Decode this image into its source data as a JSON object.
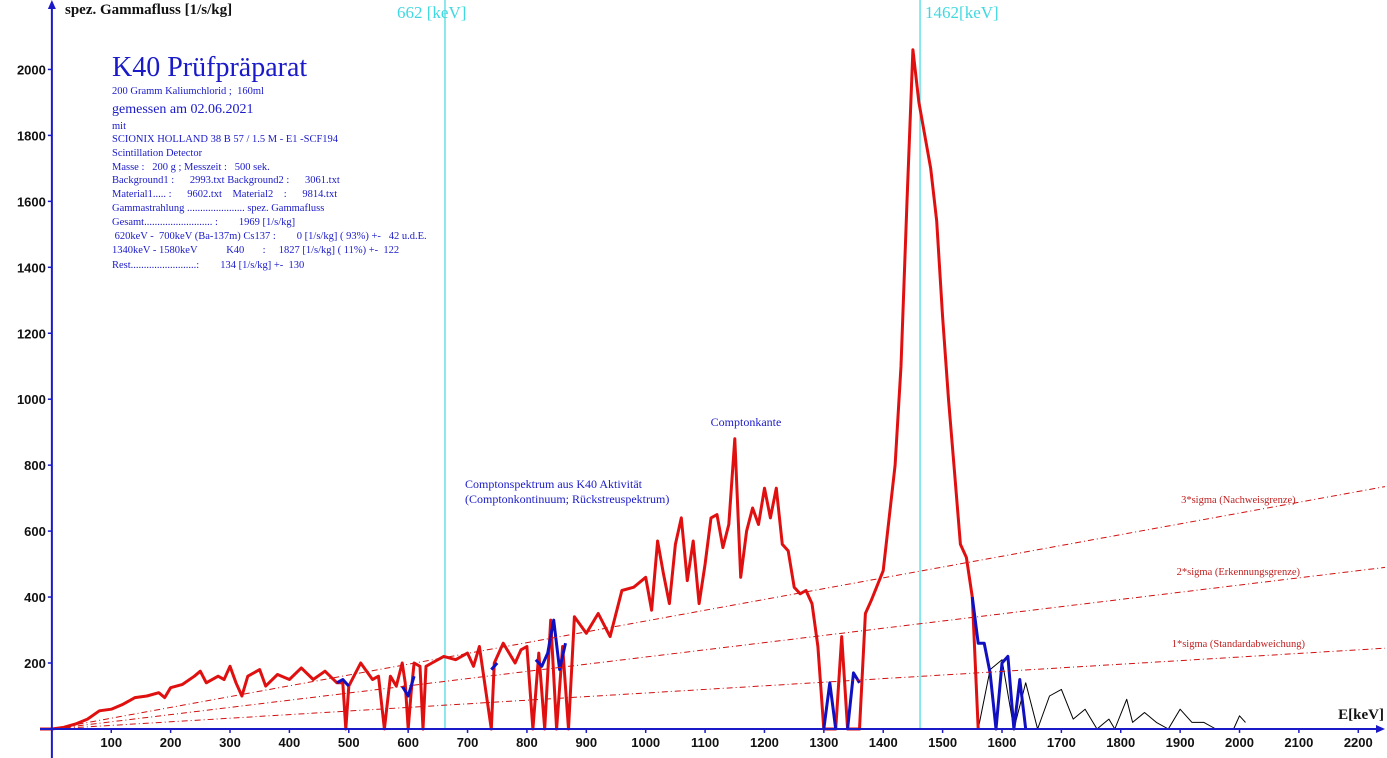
{
  "chart_data": {
    "type": "line",
    "title": "K40 Prüfpräparat",
    "y_label": "spez. Gammafluss [1/s/kg]",
    "x_label": "E[keV]",
    "info": [
      "200 Gramm Kaliumchlorid ;  160ml",
      "gemessen am 02.06.2021",
      "mit",
      "SCIONIX HOLLAND 38 B 57 / 1.5 M - E1 -SCF194",
      "Scintillation Detector",
      "Masse :   200 g ; Messzeit :   500 sek.",
      "Background1 :      2993.txt Background2 :      3061.txt",
      "Material1..... :      9602.txt    Material2    :      9814.txt",
      "Gammastrahlung ...................... spez. Gammafluss",
      "Gesamt.......................... :        1969 [1/s/kg]",
      " 620keV -  700keV (Ba-137m) Cs137 :        0 [1/s/kg] ( 93%) +-   42 u.d.E.",
      "1340keV - 1580keV           K40       :     1827 [1/s/kg] ( 11%) +-  122",
      "Rest.........................:        134 [1/s/kg] +-  130"
    ],
    "annotations": [
      "Comptonkante",
      "Comptonspektrum aus K40 Aktivität",
      "(Comptonkontinuum; Rückstreuspektrum)"
    ],
    "vlines": [
      {
        "x": 662,
        "label": "662 [keV]"
      },
      {
        "x": 1462,
        "label": "1462[keV]"
      }
    ],
    "xlim": [
      -20,
      2245
    ],
    "ylim": [
      -5,
      2200
    ],
    "xticks": [
      100,
      200,
      300,
      400,
      500,
      600,
      700,
      800,
      900,
      1000,
      1100,
      1200,
      1300,
      1400,
      1500,
      1600,
      1700,
      1800,
      1900,
      2000,
      2100,
      2200
    ],
    "yticks": [
      200,
      400,
      600,
      800,
      1000,
      1200,
      1400,
      1600,
      1800,
      2000
    ],
    "series": [
      {
        "color": "#000000",
        "width": 1,
        "x": [
          1560,
          1580,
          1600,
          1620,
          1640,
          1660,
          1680,
          1700,
          1720,
          1740,
          1760,
          1780,
          1790,
          1810,
          1820,
          1840,
          1860,
          1880,
          1900,
          1920,
          1940,
          1960,
          1990,
          2000,
          2010
        ],
        "values": [
          0,
          180,
          210,
          0,
          140,
          0,
          100,
          120,
          30,
          60,
          0,
          30,
          0,
          90,
          20,
          50,
          20,
          0,
          60,
          20,
          20,
          0,
          0,
          40,
          20
        ]
      },
      {
        "color": "#e01010",
        "width": 3,
        "x": [
          -20,
          0,
          20,
          40,
          60,
          80,
          100,
          120,
          140,
          160,
          180,
          190,
          200,
          220,
          240,
          250,
          260,
          280,
          290,
          300,
          310,
          320,
          330,
          350,
          360,
          380,
          400,
          420,
          440,
          460,
          480,
          490,
          495,
          500,
          520,
          540,
          550,
          560,
          570,
          580,
          590,
          595,
          600,
          605,
          610,
          620,
          625,
          630,
          640,
          660,
          680,
          700,
          710,
          720,
          740,
          745,
          760,
          780,
          790,
          800,
          810,
          820,
          830,
          840,
          850,
          860,
          870,
          880,
          900,
          920,
          940,
          960,
          980,
          1000,
          1010,
          1020,
          1030,
          1040,
          1050,
          1060,
          1070,
          1080,
          1090,
          1100,
          1110,
          1120,
          1130,
          1140,
          1150,
          1160,
          1170,
          1180,
          1190,
          1200,
          1210,
          1220,
          1230,
          1240,
          1250,
          1260,
          1270,
          1280,
          1290,
          1300,
          1310,
          1320,
          1330,
          1340,
          1360,
          1370,
          1380,
          1400,
          1420,
          1430,
          1440,
          1450,
          1460,
          1470,
          1480,
          1490,
          1500,
          1510,
          1520,
          1530,
          1540,
          1550,
          1560
        ],
        "values": [
          0,
          0,
          5,
          15,
          30,
          55,
          60,
          75,
          95,
          100,
          110,
          95,
          125,
          135,
          160,
          175,
          140,
          160,
          150,
          190,
          140,
          100,
          160,
          180,
          130,
          165,
          150,
          185,
          150,
          175,
          140,
          140,
          0,
          130,
          200,
          150,
          160,
          0,
          160,
          130,
          200,
          140,
          0,
          110,
          200,
          190,
          0,
          190,
          200,
          220,
          210,
          230,
          190,
          250,
          0,
          200,
          260,
          200,
          240,
          250,
          0,
          230,
          0,
          330,
          0,
          250,
          0,
          340,
          290,
          350,
          280,
          420,
          430,
          460,
          360,
          570,
          470,
          380,
          560,
          640,
          450,
          570,
          380,
          500,
          640,
          650,
          550,
          620,
          880,
          460,
          600,
          670,
          620,
          730,
          640,
          730,
          560,
          540,
          430,
          410,
          420,
          380,
          250,
          0,
          0,
          0,
          280,
          0,
          0,
          350,
          390,
          480,
          800,
          1100,
          1600,
          2060,
          1900,
          1800,
          1700,
          1540,
          1250,
          1000,
          780,
          560,
          520,
          400,
          0
        ]
      },
      {
        "color": "#1010c0",
        "width": 3,
        "x": [
          480,
          490,
          500,
          null,
          590,
          600,
          610,
          null,
          740,
          750,
          null,
          815,
          825,
          835,
          845,
          855,
          865,
          null,
          1300,
          1310,
          1320,
          null,
          1340,
          1350,
          1360,
          null,
          1550,
          1560,
          1570,
          1580,
          1590,
          1600,
          1610,
          1620,
          1630,
          1640
        ],
        "values": [
          140,
          150,
          130,
          null,
          130,
          100,
          160,
          null,
          180,
          200,
          null,
          210,
          190,
          230,
          330,
          180,
          260,
          null,
          0,
          140,
          0,
          null,
          0,
          170,
          140,
          null,
          400,
          260,
          260,
          170,
          0,
          200,
          220,
          0,
          150,
          0
        ]
      },
      {
        "name": "3*sigma (Nachweisgrenze)",
        "color": "#d01010",
        "dash": true,
        "x": [
          0,
          2245
        ],
        "values": [
          0,
          735
        ]
      },
      {
        "name": "2*sigma (Erkennungsgrenze)",
        "color": "#d01010",
        "dash": true,
        "x": [
          0,
          2245
        ],
        "values": [
          0,
          490
        ]
      },
      {
        "name": "1*sigma (Standardabweichung)",
        "color": "#d01010",
        "dash": true,
        "x": [
          0,
          2245
        ],
        "values": [
          0,
          245
        ]
      }
    ]
  }
}
